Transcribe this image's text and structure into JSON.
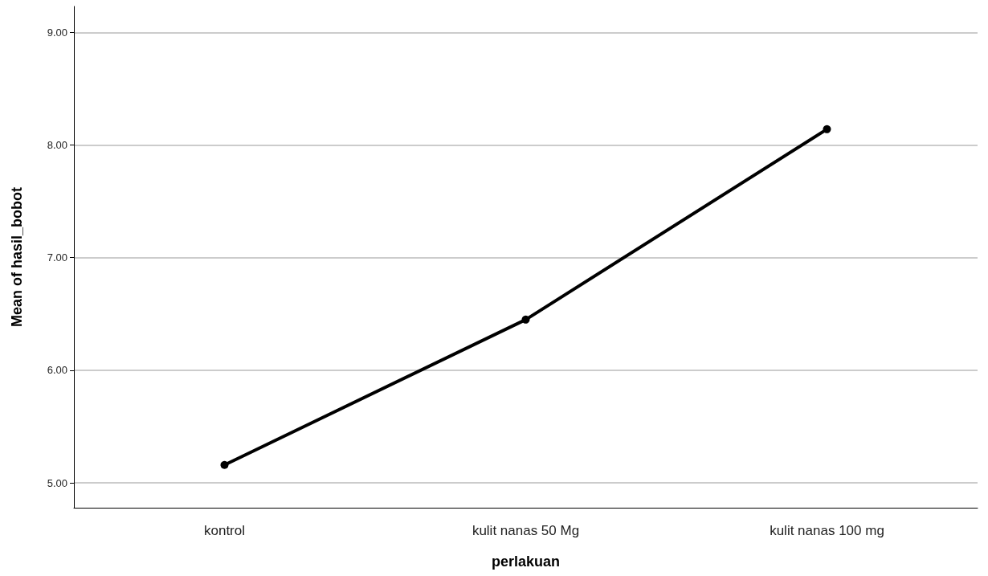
{
  "chart_data": {
    "type": "line",
    "xlabel": "perlakuan",
    "ylabel": "Mean of hasil_bobot",
    "categories": [
      "kontrol",
      "kulit nanas 50 Mg",
      "kulit nanas 100 mg"
    ],
    "series": [
      {
        "color": "#000000",
        "values": [
          5.16,
          6.45,
          8.14
        ]
      }
    ],
    "ylim": [
      4.78,
      9.23
    ],
    "yticks": [
      {
        "value": 5,
        "label": "5.00"
      },
      {
        "value": 6,
        "label": "6.00"
      },
      {
        "value": 7,
        "label": "7.00"
      },
      {
        "value": 8,
        "label": "8.00"
      },
      {
        "value": 9,
        "label": "9.00"
      }
    ],
    "grid": "y",
    "marker": "circle",
    "line_style": "solid"
  }
}
